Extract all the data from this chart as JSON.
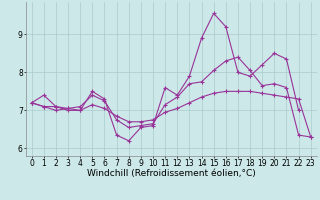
{
  "x": [
    0,
    1,
    2,
    3,
    4,
    5,
    6,
    7,
    8,
    9,
    10,
    11,
    12,
    13,
    14,
    15,
    16,
    17,
    18,
    19,
    20,
    21,
    22,
    23
  ],
  "line1": [
    7.2,
    7.4,
    7.1,
    7.0,
    7.0,
    7.5,
    7.3,
    6.35,
    6.2,
    6.55,
    6.6,
    7.6,
    7.4,
    7.9,
    8.9,
    9.55,
    9.2,
    8.0,
    7.9,
    8.2,
    8.5,
    8.35,
    7.0,
    null
  ],
  "line2": [
    7.2,
    7.1,
    7.1,
    7.05,
    7.1,
    7.4,
    7.25,
    6.75,
    6.55,
    6.6,
    6.65,
    7.15,
    7.35,
    7.7,
    7.75,
    8.05,
    8.3,
    8.4,
    8.05,
    7.65,
    7.7,
    7.6,
    6.35,
    6.3
  ],
  "line3": [
    7.2,
    7.1,
    7.0,
    7.05,
    7.0,
    7.15,
    7.05,
    6.85,
    6.7,
    6.7,
    6.75,
    6.95,
    7.05,
    7.2,
    7.35,
    7.45,
    7.5,
    7.5,
    7.5,
    7.45,
    7.4,
    7.35,
    7.3,
    6.3
  ],
  "xlim": [
    -0.5,
    23.5
  ],
  "ylim": [
    5.8,
    9.85
  ],
  "yticks": [
    6,
    7,
    8,
    9
  ],
  "xticks": [
    0,
    1,
    2,
    3,
    4,
    5,
    6,
    7,
    8,
    9,
    10,
    11,
    12,
    13,
    14,
    15,
    16,
    17,
    18,
    19,
    20,
    21,
    22,
    23
  ],
  "line_color": "#993399",
  "bg_color": "#cce8e8",
  "grid_color": "#aacccc",
  "xlabel": "Windchill (Refroidissement éolien,°C)",
  "xlabel_fontsize": 6.5,
  "tick_fontsize": 5.5,
  "marker": "+"
}
